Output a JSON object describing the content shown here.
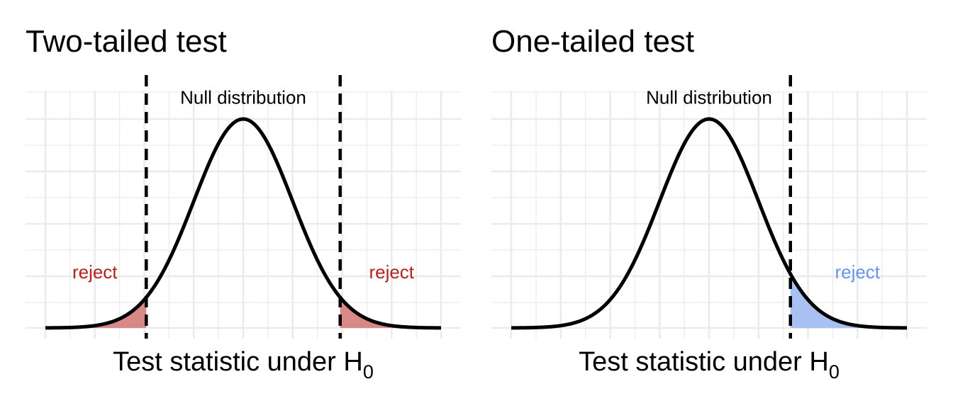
{
  "colors": {
    "background": "#ffffff",
    "grid": "#ebebeb",
    "curve": "#000000",
    "two_tailed_reject": "#b22222",
    "two_tailed_fill": "#d98888",
    "one_tailed_reject": "#6495ed",
    "one_tailed_fill": "#a9c1f2"
  },
  "chart_data": [
    {
      "type": "area",
      "title": "Two-tailed test",
      "xlabel_main": "Test statistic under H",
      "xlabel_sub": "0",
      "ylabel": "",
      "curve": "standard normal density",
      "xlim": [
        -4,
        4
      ],
      "ylim": [
        0,
        0.4
      ],
      "grid": true,
      "critical_values": [
        -1.96,
        1.96
      ],
      "shaded_regions": [
        [
          -4,
          -1.96
        ],
        [
          1.96,
          4
        ]
      ],
      "annotations": {
        "null": {
          "text": "Null distribution",
          "x": 0,
          "y": 0.428
        },
        "reject_left": {
          "text": "reject",
          "x": -3,
          "y": 0.095
        },
        "reject_right": {
          "text": "reject",
          "x": 3,
          "y": 0.095
        }
      }
    },
    {
      "type": "area",
      "title": "One-tailed test",
      "xlabel_main": "Test statistic under H",
      "xlabel_sub": "0",
      "ylabel": "",
      "curve": "standard normal density",
      "xlim": [
        -4,
        4
      ],
      "ylim": [
        0,
        0.4
      ],
      "grid": true,
      "critical_values": [
        1.645
      ],
      "shaded_regions": [
        [
          1.645,
          4
        ]
      ],
      "annotations": {
        "null": {
          "text": "Null distribution",
          "x": 0,
          "y": 0.428
        },
        "reject_right": {
          "text": "reject",
          "x": 3,
          "y": 0.095
        }
      }
    }
  ]
}
